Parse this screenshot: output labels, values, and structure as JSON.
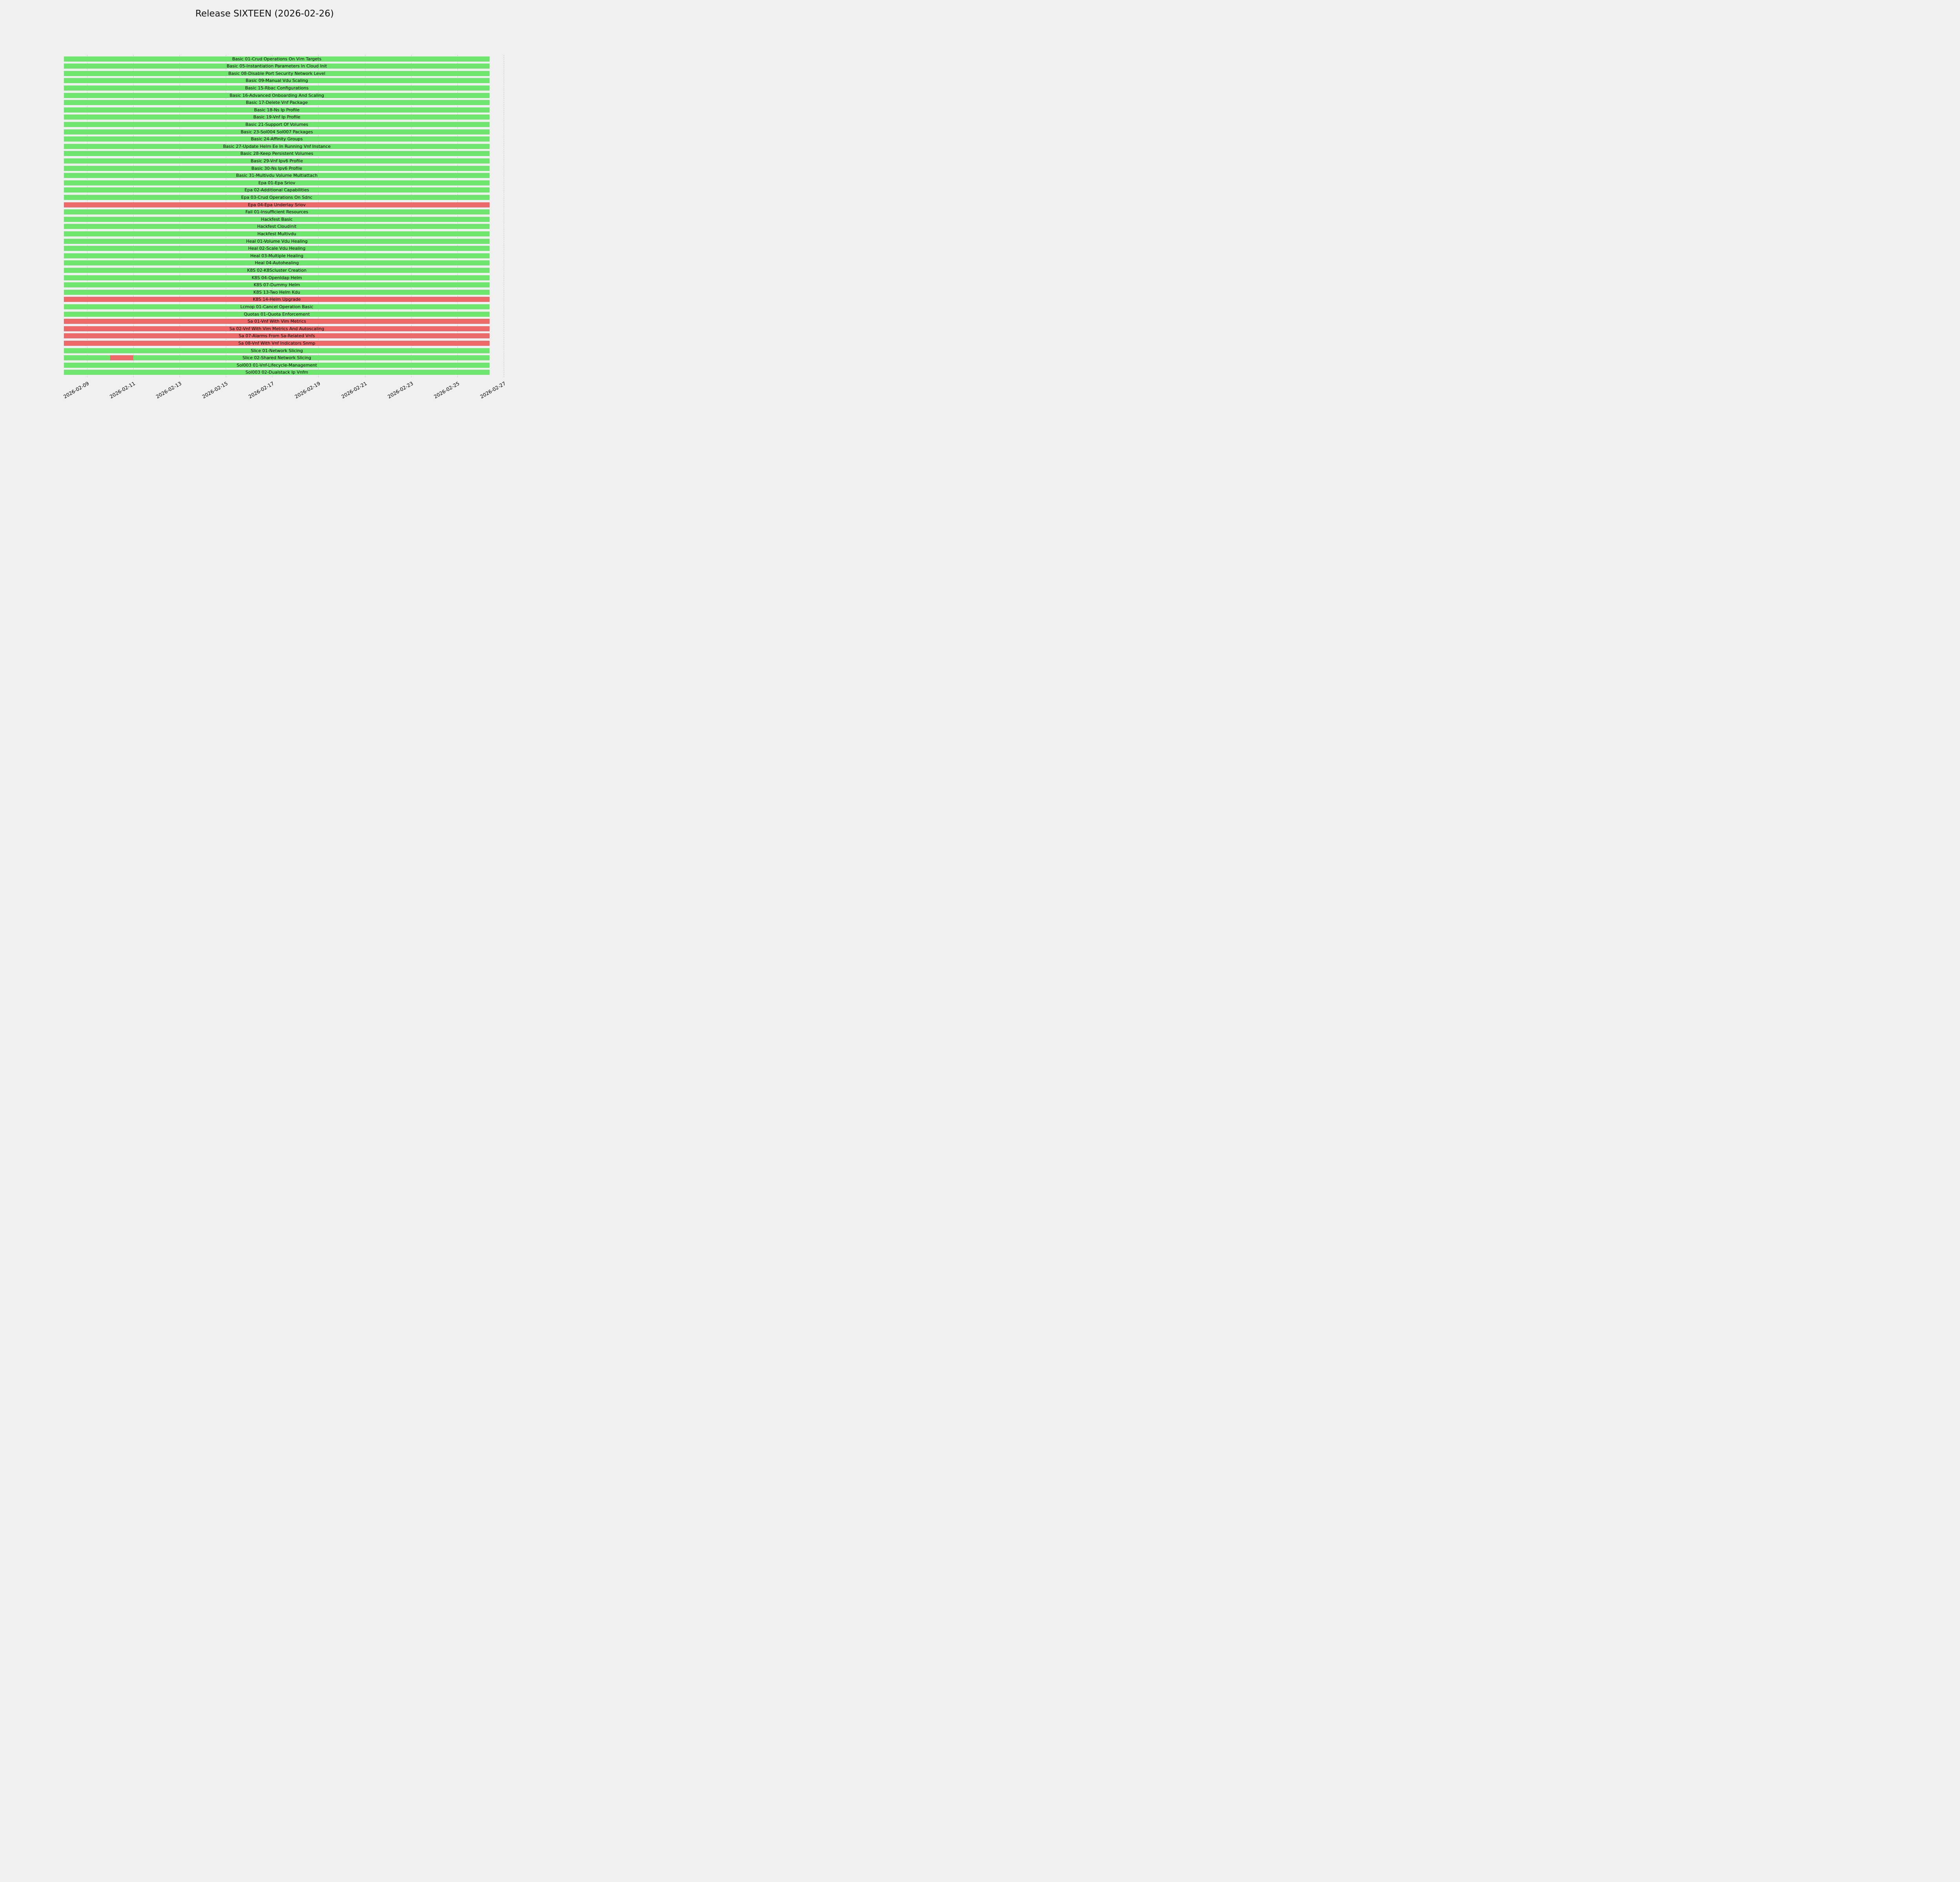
{
  "chart_data": {
    "type": "bar",
    "subtype": "gantt-timeline",
    "title": "Release SIXTEEN (2026-02-26)",
    "time_origin": "2026-02-08",
    "bar_start_day": 0,
    "bar_end_day": 18.4,
    "axis_range_days": [
      0,
      19.2
    ],
    "grid": true,
    "legend": "none",
    "status_colors": {
      "pass": "#6ee66e",
      "fail": "#ee6a6a"
    },
    "background_color": "#f0f0f0",
    "grid_color": "#c6c6c6",
    "x_ticks": [
      {
        "day": 1,
        "label": "2026-02-09"
      },
      {
        "day": 3,
        "label": "2026-02-11"
      },
      {
        "day": 5,
        "label": "2026-02-13"
      },
      {
        "day": 7,
        "label": "2026-02-15"
      },
      {
        "day": 9,
        "label": "2026-02-17"
      },
      {
        "day": 11,
        "label": "2026-02-19"
      },
      {
        "day": 13,
        "label": "2026-02-21"
      },
      {
        "day": 15,
        "label": "2026-02-23"
      },
      {
        "day": 17,
        "label": "2026-02-25"
      },
      {
        "day": 19,
        "label": "2026-02-27"
      }
    ],
    "tasks": [
      {
        "label": "Basic 01-Crud Operations On Vim Targets",
        "status": "pass"
      },
      {
        "label": "Basic 05-Instantiation Parameters In Cloud Init",
        "status": "pass"
      },
      {
        "label": "Basic 08-Disable Port Security Network Level",
        "status": "pass"
      },
      {
        "label": "Basic 09-Manual Vdu Scaling",
        "status": "pass"
      },
      {
        "label": "Basic 15-Rbac Configurations",
        "status": "pass"
      },
      {
        "label": "Basic 16-Advanced Onboarding And Scaling",
        "status": "pass"
      },
      {
        "label": "Basic 17-Delete Vnf Package",
        "status": "pass"
      },
      {
        "label": "Basic 18-Ns Ip Profile",
        "status": "pass"
      },
      {
        "label": "Basic 19-Vnf Ip Profile",
        "status": "pass"
      },
      {
        "label": "Basic 21-Support Of Volumes",
        "status": "pass"
      },
      {
        "label": "Basic 23-Sol004 Sol007 Packages",
        "status": "pass"
      },
      {
        "label": "Basic 24-Affinity Groups",
        "status": "pass"
      },
      {
        "label": "Basic 27-Update Helm Ee In Running Vnf Instance",
        "status": "pass"
      },
      {
        "label": "Basic 28-Keep Persistent Volumes",
        "status": "pass"
      },
      {
        "label": "Basic 29-Vnf Ipv6 Profile",
        "status": "pass"
      },
      {
        "label": "Basic 30-Ns Ipv6 Profile",
        "status": "pass"
      },
      {
        "label": "Basic 31-Multivdu Volume Multiattach",
        "status": "pass"
      },
      {
        "label": "Epa 01-Epa Sriov",
        "status": "pass"
      },
      {
        "label": "Epa 02-Additional Capabilities",
        "status": "pass"
      },
      {
        "label": "Epa 03-Crud Operations On Sdnc",
        "status": "pass"
      },
      {
        "label": "Epa 04-Epa Underlay Sriov",
        "status": "fail"
      },
      {
        "label": "Fail 01-Insufficient Resources",
        "status": "pass"
      },
      {
        "label": "Hackfest Basic",
        "status": "pass"
      },
      {
        "label": "Hackfest Cloudinit",
        "status": "pass"
      },
      {
        "label": "Hackfest Multivdu",
        "status": "pass"
      },
      {
        "label": "Heal 01-Volume Vdu Healing",
        "status": "pass"
      },
      {
        "label": "Heal 02-Scale Vdu Healing",
        "status": "pass"
      },
      {
        "label": "Heal 03-Multiple Healing",
        "status": "pass"
      },
      {
        "label": "Heal 04-Autohealing",
        "status": "pass"
      },
      {
        "label": "K8S 02-K8Scluster Creation",
        "status": "pass"
      },
      {
        "label": "K8S 04-Openldap Helm",
        "status": "pass"
      },
      {
        "label": "K8S 07-Dummy Helm",
        "status": "pass"
      },
      {
        "label": "K8S 13-Two Helm Kdu",
        "status": "pass"
      },
      {
        "label": "K8S 14-Helm Upgrade",
        "status": "fail"
      },
      {
        "label": "Lcmop 01-Cancel Operation Basic",
        "status": "pass"
      },
      {
        "label": "Quotas 01-Quota Enforcement",
        "status": "pass"
      },
      {
        "label": "Sa 01-Vnf With Vim Metrics",
        "status": "fail"
      },
      {
        "label": "Sa 02-Vnf With Vim Metrics And Autoscaling",
        "status": "fail"
      },
      {
        "label": "Sa 07-Alarms From Sa-Related Vnfs",
        "status": "fail"
      },
      {
        "label": "Sa 08-Vnf With Vnf Indicators Snmp",
        "status": "fail"
      },
      {
        "label": "Slice 01-Network Slicing",
        "status": "pass"
      },
      {
        "label": "Slice 02-Shared Network Slicing",
        "status": "pass",
        "segments": [
          {
            "start": 0,
            "end": 2,
            "status": "pass"
          },
          {
            "start": 2,
            "end": 3,
            "status": "fail"
          },
          {
            "start": 3,
            "end": 18.4,
            "status": "pass"
          }
        ]
      },
      {
        "label": "Sol003 01-Vnf-Lifecycle-Management",
        "status": "pass"
      },
      {
        "label": "Sol003 02-Dualstack Ip Vnfm",
        "status": "pass"
      }
    ]
  }
}
